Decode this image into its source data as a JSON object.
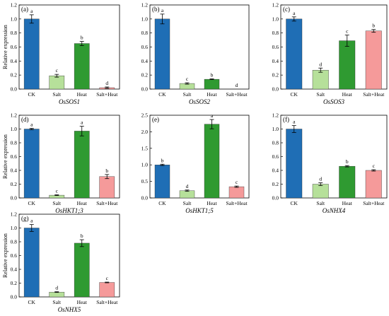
{
  "figure": {
    "colors": {
      "CK": "#1f6eb5",
      "Salt": "#b6e09a",
      "Heat": "#2f9a31",
      "Salt+Heat": "#f59a9a"
    }
  },
  "chart_data": [
    {
      "type": "bar",
      "panel": "(a)",
      "title": "OsSOS1",
      "ylabel": "Relative expression",
      "categories": [
        "CK",
        "Salt",
        "Heat",
        "Salt+Heat"
      ],
      "values": [
        1.0,
        0.19,
        0.65,
        0.02
      ],
      "errors": [
        0.06,
        0.02,
        0.03,
        0.01
      ],
      "significance": [
        "a",
        "c",
        "b",
        "d"
      ],
      "ylim": [
        0,
        1.2
      ],
      "yticks": [
        "0.0",
        "0.2",
        "0.4",
        "0.6",
        "0.8",
        "1.0",
        "1.2"
      ]
    },
    {
      "type": "bar",
      "panel": "(b)",
      "title": "OsSOS2",
      "ylabel": "",
      "categories": [
        "CK",
        "Salt",
        "Heat",
        "Salt+Heat"
      ],
      "values": [
        1.0,
        0.08,
        0.14,
        0.0
      ],
      "errors": [
        0.07,
        0.01,
        0.005,
        0.0
      ],
      "significance": [
        "a",
        "c",
        "b",
        "d"
      ],
      "ylim": [
        0,
        1.2
      ],
      "yticks": [
        "0.0",
        "0.2",
        "0.4",
        "0.6",
        "0.8",
        "1.0",
        "1.2"
      ]
    },
    {
      "type": "bar",
      "panel": "(c)",
      "title": "OsSOS3",
      "ylabel": "",
      "categories": [
        "CK",
        "Salt",
        "Heat",
        "Salt+Heat"
      ],
      "values": [
        1.0,
        0.27,
        0.69,
        0.83
      ],
      "errors": [
        0.03,
        0.03,
        0.08,
        0.02
      ],
      "significance": [
        "a",
        "d",
        "c",
        "b"
      ],
      "ylim": [
        0,
        1.2
      ],
      "yticks": [
        "0.0",
        "0.2",
        "0.4",
        "0.6",
        "0.8",
        "1.0",
        "1.2"
      ]
    },
    {
      "type": "bar",
      "panel": "(d)",
      "title": "OsHKT1;3",
      "ylabel": "Relative expression",
      "categories": [
        "CK",
        "Salt",
        "Heat",
        "Salt+Heat"
      ],
      "values": [
        1.0,
        0.04,
        0.97,
        0.31
      ],
      "errors": [
        0.01,
        0.005,
        0.07,
        0.03
      ],
      "significance": [
        "a",
        "c",
        "a",
        "b"
      ],
      "ylim": [
        0,
        1.2
      ],
      "yticks": [
        "0.0",
        "0.2",
        "0.4",
        "0.6",
        "0.8",
        "1.0",
        "1.2"
      ]
    },
    {
      "type": "bar",
      "panel": "(e)",
      "title": "OsHKT1;5",
      "ylabel": "",
      "categories": [
        "CK",
        "Salt",
        "Heat",
        "Salt+Heat"
      ],
      "values": [
        1.0,
        0.22,
        2.23,
        0.34
      ],
      "errors": [
        0.02,
        0.02,
        0.14,
        0.02
      ],
      "significance": [
        "b",
        "d",
        "a",
        "c"
      ],
      "ylim": [
        0,
        2.5
      ],
      "yticks": [
        "0.0",
        "0.5",
        "1.0",
        "1.5",
        "2.0",
        "2.5"
      ]
    },
    {
      "type": "bar",
      "panel": "(f)",
      "title": "OsNHX4",
      "ylabel": "",
      "categories": [
        "CK",
        "Salt",
        "Heat",
        "Salt+Heat"
      ],
      "values": [
        1.0,
        0.2,
        0.46,
        0.4
      ],
      "errors": [
        0.05,
        0.02,
        0.01,
        0.01
      ],
      "significance": [
        "a",
        "d",
        "b",
        "c"
      ],
      "ylim": [
        0,
        1.2
      ],
      "yticks": [
        "0.0",
        "0.2",
        "0.4",
        "0.6",
        "0.8",
        "1.0",
        "1.2"
      ]
    },
    {
      "type": "bar",
      "panel": "(g)",
      "title": "OsNHX5",
      "ylabel": "Relative expression",
      "categories": [
        "CK",
        "Salt",
        "Heat",
        "Salt+Heat"
      ],
      "values": [
        1.0,
        0.07,
        0.78,
        0.21
      ],
      "errors": [
        0.05,
        0.005,
        0.05,
        0.005
      ],
      "significance": [
        "a",
        "d",
        "b",
        "c"
      ],
      "ylim": [
        0,
        1.2
      ],
      "yticks": [
        "0.0",
        "0.2",
        "0.4",
        "0.6",
        "0.8",
        "1.0",
        "1.2"
      ]
    }
  ]
}
